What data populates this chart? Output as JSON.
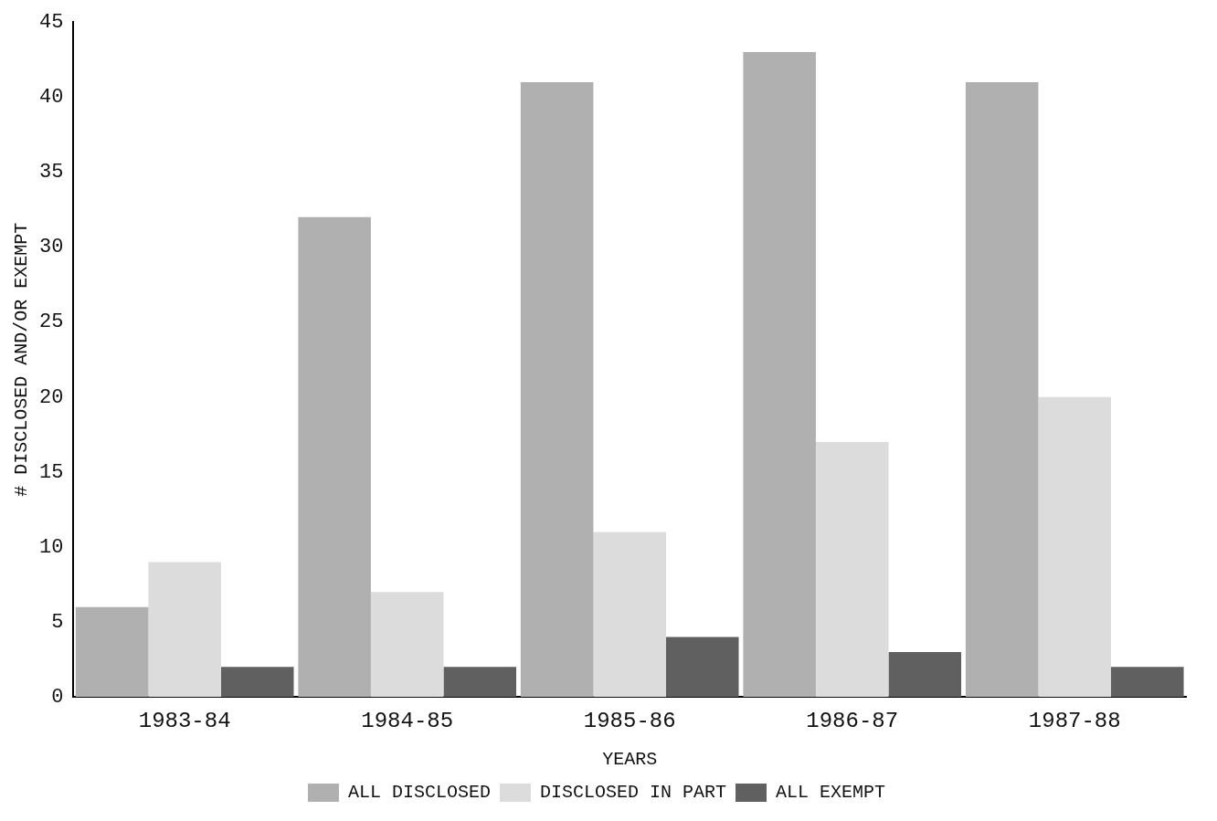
{
  "chart_data": {
    "type": "bar",
    "xlabel": "YEARS",
    "ylabel": "# DISCLOSED AND/OR EXEMPT",
    "categories": [
      "1983-84",
      "1984-85",
      "1985-86",
      "1986-87",
      "1987-88"
    ],
    "series": [
      {
        "name": "ALL DISCLOSED",
        "color": "#b0b0b0",
        "values": [
          6,
          32,
          41,
          43,
          41
        ]
      },
      {
        "name": "DISCLOSED IN PART",
        "color": "#dcdcdc",
        "values": [
          9,
          7,
          11,
          17,
          20
        ]
      },
      {
        "name": "ALL EXEMPT",
        "color": "#606060",
        "values": [
          2,
          2,
          4,
          3,
          2
        ]
      }
    ],
    "ylim": [
      0,
      45
    ],
    "yticks": [
      0,
      5,
      10,
      15,
      20,
      25,
      30,
      35,
      40,
      45
    ],
    "grid": false,
    "legend": "bottom"
  }
}
